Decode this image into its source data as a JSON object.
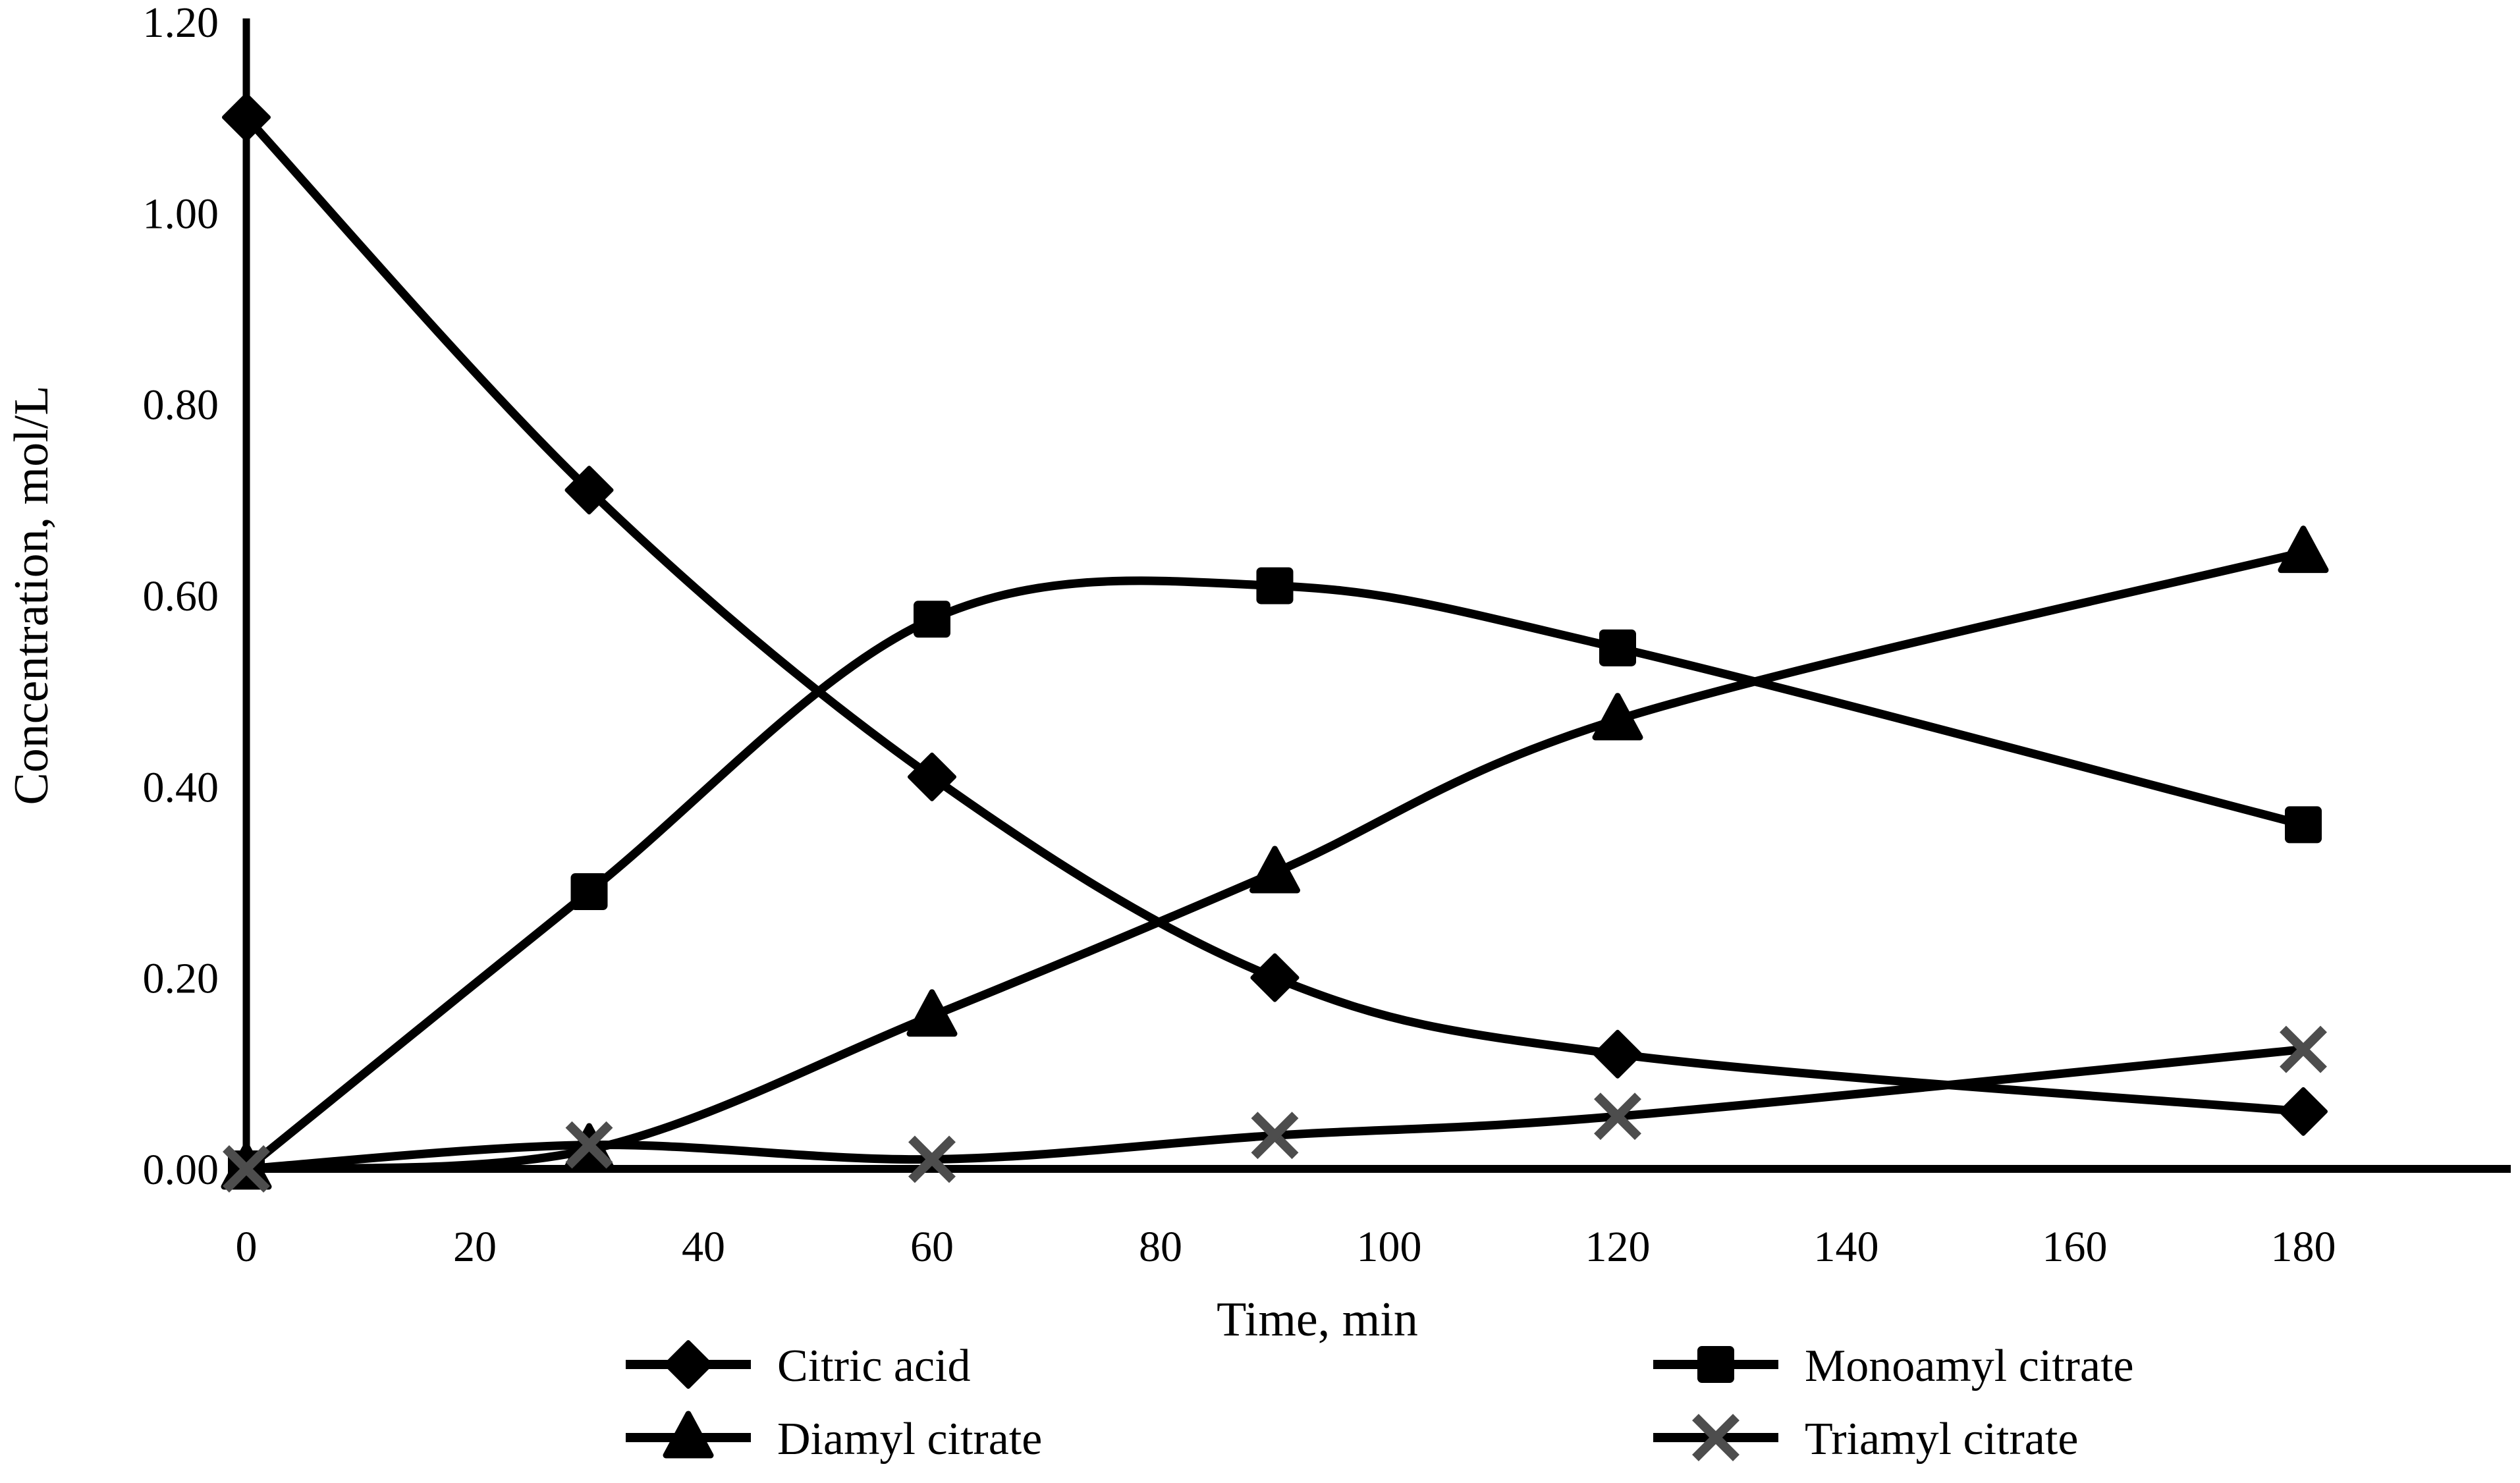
{
  "chart_data": {
    "type": "line",
    "title": "",
    "xlabel": "Time, min",
    "ylabel": "Concentration, mol/L",
    "x": [
      0,
      30,
      60,
      90,
      120,
      180
    ],
    "xlim": [
      0,
      198
    ],
    "ylim": [
      0,
      1.2
    ],
    "x_ticks": [
      "0",
      "20",
      "40",
      "60",
      "80",
      "100",
      "120",
      "140",
      "160",
      "180"
    ],
    "x_tick_values": [
      0,
      20,
      40,
      60,
      80,
      100,
      120,
      140,
      160,
      180
    ],
    "y_ticks": [
      "0.00",
      "0.20",
      "0.40",
      "0.60",
      "0.80",
      "1.00",
      "1.20"
    ],
    "y_tick_values": [
      0,
      0.2,
      0.4,
      0.6,
      0.8,
      1.0,
      1.2
    ],
    "grid": false,
    "line_color": "#000000",
    "x_marker_color": "#4d4d4d",
    "legend_position": "bottom-two-columns",
    "series": [
      {
        "name": "Citric acid",
        "slug": "citric-acid",
        "marker": "diamond",
        "smooth": true,
        "values": [
          1.1,
          0.71,
          0.41,
          0.2,
          0.12,
          0.06
        ]
      },
      {
        "name": "Monoamyl citrate",
        "slug": "monoamyl-citrate",
        "marker": "square",
        "smooth": true,
        "values": [
          0.0,
          0.29,
          0.575,
          0.61,
          0.545,
          0.36
        ]
      },
      {
        "name": "Diamyl citrate",
        "slug": "diamyl-citrate",
        "marker": "triangle",
        "smooth": true,
        "values": [
          0.0,
          0.02,
          0.16,
          0.31,
          0.47,
          0.645
        ]
      },
      {
        "name": "Triamyl citrate",
        "slug": "triamyl-citrate",
        "marker": "x",
        "smooth": true,
        "values": [
          0.0,
          0.025,
          0.01,
          0.035,
          0.055,
          0.125
        ]
      }
    ]
  }
}
